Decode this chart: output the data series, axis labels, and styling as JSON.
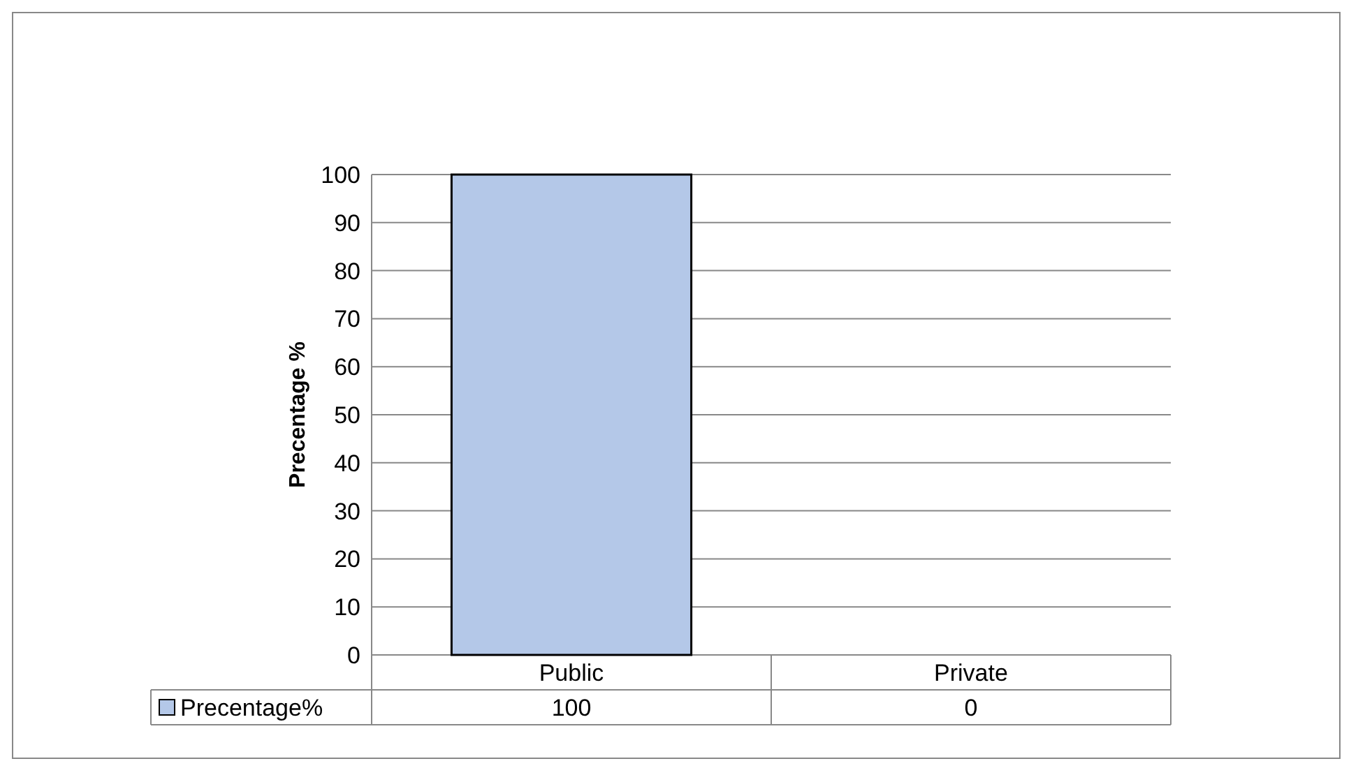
{
  "chart_data": {
    "type": "bar",
    "ylabel": "Precentage %",
    "categories": [
      "Public",
      "Private"
    ],
    "series": [
      {
        "name": "Precentage%",
        "color": "#b4c8e8",
        "values": [
          100,
          0
        ]
      }
    ],
    "ylim": [
      0,
      100
    ],
    "yticks": [
      0,
      10,
      20,
      30,
      40,
      50,
      60,
      70,
      80,
      90,
      100
    ],
    "grid": "y",
    "legend": "bottom",
    "data_labels": true
  }
}
